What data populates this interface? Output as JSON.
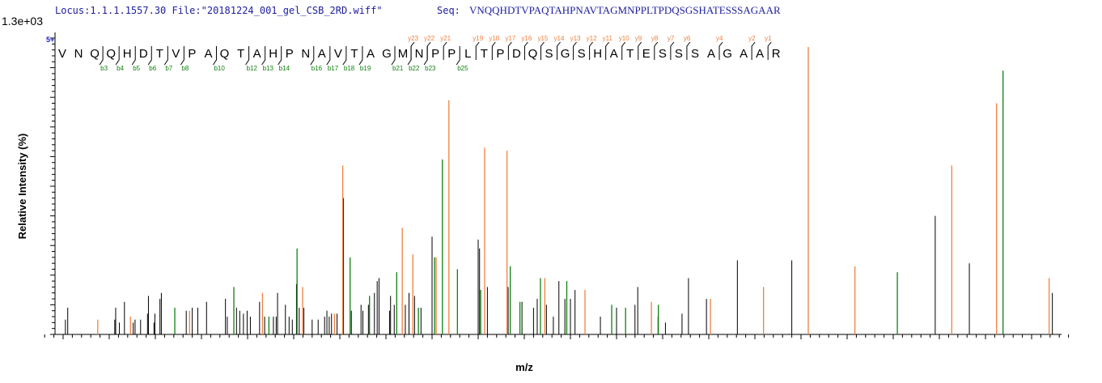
{
  "header": {
    "locus": "Locus:1.1.1.1557.30 File:\"20181224_001_gel_CSB_2RD.wiff\"",
    "seq_label": "Seq:",
    "sequence": "VNQQHDTVPAQTAHPNAVTAGMNPPLTPDQSGSHATESSSAGAAR",
    "scale": "1.3e+03",
    "charge": "5+"
  },
  "colors": {
    "y": "#f08040",
    "b": "#108010",
    "other": "#000000",
    "text": "#2020a0"
  },
  "chart_data": {
    "type": "bar",
    "xlabel": "m/z",
    "ylabel": "Relative   Intensity (%)",
    "xlim": [
      50,
      2290
    ],
    "ylim": [
      0,
      100
    ],
    "xticks": [
      100,
      200,
      300,
      400,
      500,
      600,
      700,
      800,
      900,
      1000,
      1100,
      1200,
      1300,
      1400,
      1500,
      1600,
      1700,
      1800,
      1900,
      2000,
      2100,
      2200
    ],
    "yticks": [
      0,
      10,
      20,
      30,
      40,
      50,
      60,
      70,
      80,
      90,
      100
    ],
    "b_ions": [
      3,
      4,
      5,
      6,
      7,
      8,
      10,
      12,
      13,
      14,
      16,
      17,
      18,
      19,
      21,
      22,
      23,
      25
    ],
    "y_ions": [
      23,
      22,
      21,
      19,
      18,
      17,
      16,
      15,
      14,
      13,
      12,
      11,
      10,
      9,
      8,
      7,
      6,
      4,
      2,
      1
    ],
    "annotated": [
      {
        "ion": "y",
        "label": "y1+ 175.12",
        "mz": 175.12,
        "i": 5
      },
      {
        "ion": "y",
        "label": "y2+ 246.09",
        "mz": 246.09,
        "i": 6
      },
      {
        "ion": "b",
        "label": "b3+ 342.17",
        "mz": 342.17,
        "i": 9
      },
      {
        "ion": "y",
        "label": "y4+ 374.21",
        "mz": 374.21,
        "i": 8
      },
      {
        "ion": "b",
        "label": "b4+ 470.23",
        "mz": 470.23,
        "i": 16
      },
      {
        "ion": "y",
        "label": "y6+ 532.28",
        "mz": 532.28,
        "i": 14
      },
      {
        "ion": "b",
        "label": "b10++ 546.25",
        "mz": 546.25,
        "i": 6
      },
      {
        "ion": "b",
        "label": "b5+ 607.30",
        "mz": 607.3,
        "i": 29
      },
      {
        "ion": "y",
        "label": "y7+ 619.30",
        "mz": 619.3,
        "i": 16
      },
      {
        "ion": "y",
        "label": "y15++ 688.36",
        "mz": 688.36,
        "i": 7
      },
      {
        "ion": "y",
        "label": "y8+ 706.35",
        "mz": 706.35,
        "i": 57
      },
      {
        "ion": "b",
        "label": "b6+ 722.31",
        "mz": 722.31,
        "i": 26
      },
      {
        "ion": "b",
        "label": "b14++ 764.36",
        "mz": 764.36,
        "i": 13
      },
      {
        "ion": "b",
        "label": "b7+ 823.36",
        "mz": 823.36,
        "i": 21
      },
      {
        "ion": "y",
        "label": "y9+ 835.39",
        "mz": 835.39,
        "i": 36
      },
      {
        "ion": "y",
        "label": "y18++ 858.36",
        "mz": 858.36,
        "i": 27
      },
      {
        "ion": "b",
        "label": "b16++ 870.41",
        "mz": 870.41,
        "i": 9
      },
      {
        "ion": "b",
        "label": "b17++ 905.43",
        "mz": 905.43,
        "i": 26
      },
      {
        "ion": "y",
        "label": "y19++ 908.89",
        "mz": 908.89,
        "i": 26
      },
      {
        "ion": "b",
        "label": "b8+ 922.46",
        "mz": 922.46,
        "i": 59
      },
      {
        "ion": "y",
        "label": "y10+ 936.49",
        "mz": 936.49,
        "i": 79
      },
      {
        "ion": "b",
        "label": "b18++ 954.97",
        "mz": 954.97,
        "i": 22
      },
      {
        "ion": "b",
        "label": "b19++ 1005.47",
        "mz": 1005.47,
        "i": 15
      },
      {
        "ion": "y",
        "label": "y21++ 1013.97",
        "mz": 1013.97,
        "i": 63
      },
      {
        "ion": "y",
        "label": "y22++ 1062.49",
        "mz": 1062.49,
        "i": 62
      },
      {
        "ion": "b",
        "label": "b21++ 1069.55",
        "mz": 1069.55,
        "i": 23
      },
      {
        "ion": "b",
        "label": "b10+ 1090.54",
        "mz": 1090.54,
        "i": 11
      },
      {
        "ion": "b",
        "label": "1135.03",
        "mz": 1135.03,
        "i": 19
      },
      {
        "ion": "y",
        "label": "y12+ 1144.54",
        "mz": 1144.54,
        "i": 19
      },
      {
        "ion": "b",
        "label": "b23++ 1192.10",
        "mz": 1192.1,
        "i": 18
      },
      {
        "ion": "y",
        "label": "y13+ 1231.61",
        "mz": 1231.61,
        "i": 15
      },
      {
        "ion": "b",
        "label": "b25++ 1289.57",
        "mz": 1289.57,
        "i": 10
      },
      {
        "ion": "b",
        "label": "b12+ 1319.64",
        "mz": 1319.64,
        "i": 9
      },
      {
        "ion": "y",
        "label": "y15+ 1375.58",
        "mz": 1375.58,
        "i": 11
      },
      {
        "ion": "b",
        "label": "b13+ 1390.69",
        "mz": 1390.69,
        "i": 10
      },
      {
        "ion": "y",
        "label": "y16+ 1503.67",
        "mz": 1503.67,
        "i": 12
      },
      {
        "ion": "y",
        "label": "y17+ 1618.70",
        "mz": 1618.7,
        "i": 16
      },
      {
        "ion": "y",
        "label": "y18+ 1715.76",
        "mz": 1715.76,
        "i": 97
      },
      {
        "ion": "y",
        "label": "y19+ 1816.89",
        "mz": 1816.89,
        "i": 23
      },
      {
        "ion": "b",
        "label": "b18+ 1908.86",
        "mz": 1908.86,
        "i": 21
      },
      {
        "ion": "y",
        "label": "y21+ 2026.87",
        "mz": 2026.87,
        "i": 57
      },
      {
        "ion": "y",
        "label": "y22+ 2124.03",
        "mz": 2124.03,
        "i": 78
      },
      {
        "ion": "b",
        "label": "b21+ 2138.02",
        "mz": 2138.02,
        "i": 89
      },
      {
        "ion": "y",
        "label": "y23+ 2238.03",
        "mz": 2238.03,
        "i": 19
      }
    ],
    "unannotated": [
      [
        105,
        5
      ],
      [
        110,
        9
      ],
      [
        212,
        5
      ],
      [
        214,
        9
      ],
      [
        222,
        4
      ],
      [
        233,
        11
      ],
      [
        252,
        4
      ],
      [
        256,
        5
      ],
      [
        268,
        5
      ],
      [
        283,
        7
      ],
      [
        285,
        13
      ],
      [
        297,
        4
      ],
      [
        299,
        7
      ],
      [
        310,
        12
      ],
      [
        313,
        14
      ],
      [
        367,
        8
      ],
      [
        380,
        9
      ],
      [
        392,
        9
      ],
      [
        411,
        11
      ],
      [
        452,
        12
      ],
      [
        456,
        6
      ],
      [
        476,
        9
      ],
      [
        483,
        8
      ],
      [
        491,
        7
      ],
      [
        499,
        8
      ],
      [
        506,
        6
      ],
      [
        526,
        11
      ],
      [
        537,
        6
      ],
      [
        556,
        6
      ],
      [
        562,
        6
      ],
      [
        565,
        14
      ],
      [
        582,
        10
      ],
      [
        590,
        6
      ],
      [
        597,
        5
      ],
      [
        606,
        17
      ],
      [
        612,
        9
      ],
      [
        622,
        9
      ],
      [
        640,
        5
      ],
      [
        653,
        5
      ],
      [
        667,
        6
      ],
      [
        672,
        8
      ],
      [
        677,
        6
      ],
      [
        682,
        7
      ],
      [
        694,
        7
      ],
      [
        708,
        46
      ],
      [
        725,
        8
      ],
      [
        746,
        10
      ],
      [
        750,
        8
      ],
      [
        762,
        10
      ],
      [
        775,
        14
      ],
      [
        781,
        18
      ],
      [
        785,
        19
      ],
      [
        808,
        8
      ],
      [
        810,
        13
      ],
      [
        818,
        10
      ],
      [
        842,
        10
      ],
      [
        850,
        14
      ],
      [
        862,
        13
      ],
      [
        876,
        9
      ],
      [
        900,
        33
      ],
      [
        1000,
        32
      ],
      [
        1003,
        29
      ],
      [
        1020,
        16
      ],
      [
        1065,
        16
      ],
      [
        1095,
        11
      ],
      [
        1120,
        9
      ],
      [
        1128,
        12
      ],
      [
        1148,
        10
      ],
      [
        1163,
        6
      ],
      [
        1175,
        18
      ],
      [
        1188,
        12
      ],
      [
        1200,
        12
      ],
      [
        1210,
        15
      ],
      [
        1265,
        6
      ],
      [
        1300,
        9
      ],
      [
        1340,
        10
      ],
      [
        1346,
        16
      ],
      [
        1390,
        6
      ],
      [
        1406,
        4
      ],
      [
        1442,
        7
      ],
      [
        1456,
        19
      ],
      [
        1495,
        12
      ],
      [
        1562,
        25
      ],
      [
        1680,
        25
      ],
      [
        1991,
        40
      ],
      [
        2065,
        24
      ],
      [
        2245,
        14
      ]
    ]
  }
}
